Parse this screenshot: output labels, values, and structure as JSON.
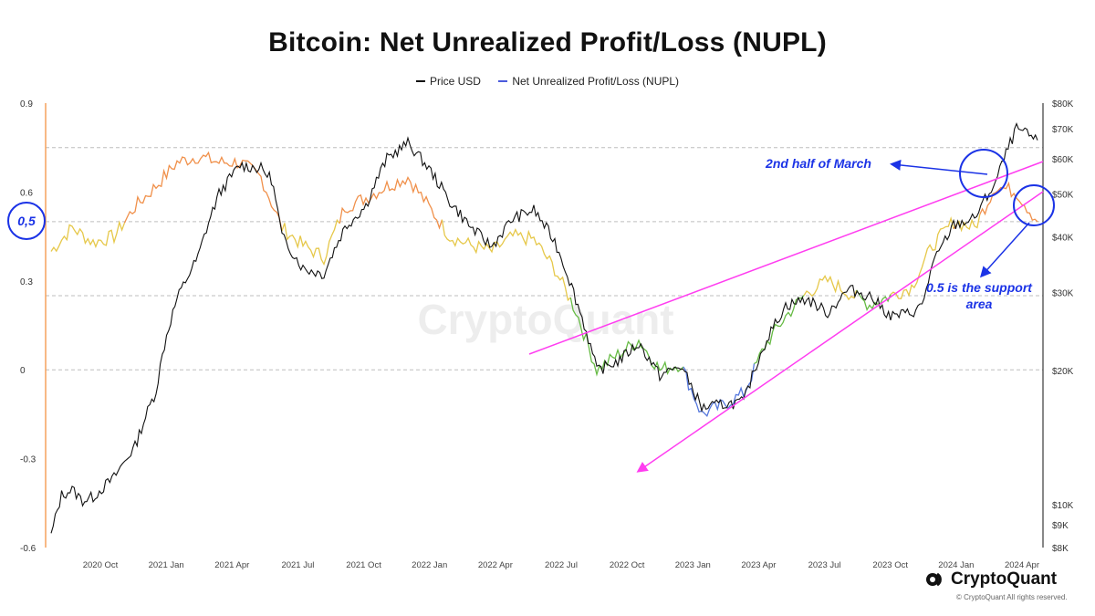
{
  "title": "Bitcoin: Net Unrealized Profit/Loss (NUPL)",
  "brand": {
    "name": "CryptoQuant",
    "copyright": "© CryptoQuant All rights reserved.",
    "watermark": "CryptoQuant"
  },
  "colors": {
    "price": "#111111",
    "nupl_legend": "#4b5bdc",
    "trend": "#ff3df0",
    "annotation": "#1b33e6",
    "nupl_blue": "#5577dd",
    "nupl_green": "#66bb44",
    "nupl_yellow": "#e6c84a",
    "nupl_orange": "#f0904a",
    "left_axis": "#f5a25d"
  },
  "chart_data": {
    "type": "line",
    "legend": [
      {
        "name": "Price USD",
        "color": "#111111"
      },
      {
        "name": "Net Unrealized Profit/Loss (NUPL)",
        "color": "#4b5bdc"
      }
    ],
    "x_ticks": [
      "2020 Oct",
      "2021 Jan",
      "2021 Apr",
      "2021 Jul",
      "2021 Oct",
      "2022 Jan",
      "2022 Apr",
      "2022 Jul",
      "2022 Oct",
      "2023 Jan",
      "2023 Apr",
      "2023 Jul",
      "2023 Oct",
      "2024 Jan",
      "2024 Apr"
    ],
    "x_range": [
      0,
      47
    ],
    "y_left": {
      "range": [
        -0.6,
        0.9
      ],
      "ticks": [
        0.9,
        0.6,
        0.3,
        0,
        -0.3,
        -0.6
      ],
      "tick_labels": [
        "0.9",
        "0.6",
        "0.3",
        "0",
        "-0.3",
        "-0.6"
      ]
    },
    "y_right": {
      "scale": "log",
      "range": [
        8000,
        80000
      ],
      "ticks": [
        80000,
        70000,
        60000,
        50000,
        40000,
        30000,
        20000,
        10000,
        9000,
        8000
      ],
      "tick_labels": [
        "$80K",
        "$70K",
        "$60K",
        "$50K",
        "$40K",
        "$30K",
        "$20K",
        "$10K",
        "$9K",
        "$8K"
      ]
    },
    "grid_y_values_left": [
      0.75,
      0.5,
      0.25,
      0
    ],
    "series": [
      {
        "name": "Price USD",
        "axis": "right",
        "x": [
          0,
          0.5,
          1,
          1.5,
          2,
          3,
          4,
          5,
          5.5,
          6,
          7,
          8,
          9,
          10,
          10.5,
          11,
          12,
          13,
          14,
          15,
          16,
          17,
          18,
          19,
          20,
          21,
          22,
          23,
          24,
          25,
          26,
          27,
          28,
          29,
          30,
          31,
          32,
          33,
          34,
          35,
          36,
          37,
          38,
          39,
          40,
          41,
          41.5,
          42,
          43,
          44,
          45,
          46,
          47
        ],
        "y": [
          8500,
          10500,
          10800,
          10200,
          10400,
          11500,
          13500,
          18000,
          24000,
          29000,
          36000,
          50000,
          58000,
          57000,
          54000,
          40000,
          34000,
          33000,
          42000,
          47000,
          60000,
          65000,
          57000,
          48000,
          42000,
          38000,
          44000,
          46000,
          39000,
          29000,
          20000,
          21000,
          23000,
          19500,
          20500,
          16500,
          16800,
          17000,
          23000,
          28000,
          29000,
          27000,
          30500,
          29500,
          26500,
          27000,
          28000,
          34500,
          42500,
          44000,
          53000,
          70000,
          66000
        ]
      },
      {
        "name": "Net Unrealized Profit/Loss (NUPL)",
        "axis": "left",
        "x": [
          0,
          1,
          2,
          3,
          4,
          5,
          6,
          7,
          8,
          9,
          10,
          11,
          12,
          13,
          14,
          15,
          16,
          17,
          18,
          19,
          20,
          21,
          22,
          23,
          24,
          25,
          26,
          27,
          28,
          29,
          30,
          31,
          32,
          33,
          34,
          35,
          36,
          37,
          38,
          39,
          40,
          41,
          42,
          43,
          44,
          45,
          46,
          47
        ],
        "y": [
          0.4,
          0.48,
          0.43,
          0.45,
          0.55,
          0.62,
          0.7,
          0.72,
          0.7,
          0.7,
          0.65,
          0.48,
          0.42,
          0.38,
          0.55,
          0.58,
          0.62,
          0.65,
          0.55,
          0.45,
          0.42,
          0.4,
          0.45,
          0.44,
          0.34,
          0.2,
          0.0,
          0.05,
          0.1,
          0.0,
          0.02,
          -0.15,
          -0.12,
          -0.08,
          0.08,
          0.18,
          0.26,
          0.3,
          0.26,
          0.22,
          0.25,
          0.28,
          0.42,
          0.5,
          0.48,
          0.62,
          0.6,
          0.5
        ],
        "color_segments": [
          "orange",
          "yellow",
          "green",
          "blue",
          "green",
          "yellow",
          "orange"
        ]
      }
    ]
  },
  "annotations": {
    "left_marker": "0,5",
    "march_label": "2nd half of March",
    "support_label_line1": "0.5 is the support",
    "support_label_line2": "area"
  }
}
